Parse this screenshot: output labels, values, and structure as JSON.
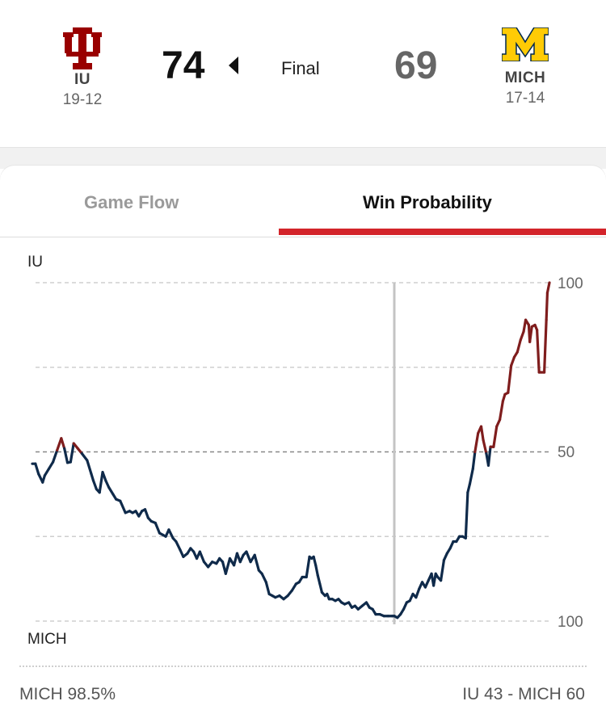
{
  "game": {
    "home": {
      "abbr": "IU",
      "record": "19-12",
      "score": "74",
      "color": "#990000"
    },
    "away": {
      "abbr": "MICH",
      "record": "17-14",
      "score": "69",
      "color": "#FFCB05"
    },
    "status": "Final"
  },
  "tabs": [
    {
      "label": "Game Flow",
      "active": false
    },
    {
      "label": "Win Probability",
      "active": true
    }
  ],
  "footer": {
    "left": "MICH 98.5%",
    "right": "IU 43  - MICH 60"
  },
  "chart_data": {
    "type": "line",
    "top_label": "IU",
    "bottom_label": "MICH",
    "y_ticks": [
      "100",
      "50",
      "100"
    ],
    "halftime_x": 0.7,
    "colors": {
      "iu_favored": "#7f1d1d",
      "mich_favored": "#0f2a4a"
    },
    "series": [
      {
        "points": [
          [
            0.0,
            46.5
          ],
          [
            0.006,
            46.5
          ],
          [
            0.012,
            43.5
          ],
          [
            0.02,
            41.0
          ],
          [
            0.024,
            43.0
          ],
          [
            0.032,
            45.0
          ],
          [
            0.04,
            47.0
          ],
          [
            0.048,
            50.5
          ],
          [
            0.056,
            54.0
          ],
          [
            0.062,
            51.0
          ],
          [
            0.068,
            46.8
          ],
          [
            0.074,
            47.0
          ],
          [
            0.08,
            52.5
          ],
          [
            0.088,
            51.0
          ],
          [
            0.096,
            49.5
          ],
          [
            0.106,
            47.5
          ],
          [
            0.114,
            43.5
          ],
          [
            0.118,
            41.5
          ],
          [
            0.124,
            39.0
          ],
          [
            0.13,
            38.0
          ],
          [
            0.136,
            44.0
          ],
          [
            0.142,
            41.5
          ],
          [
            0.148,
            39.5
          ],
          [
            0.156,
            37.5
          ],
          [
            0.162,
            36.0
          ],
          [
            0.17,
            35.5
          ],
          [
            0.18,
            32.0
          ],
          [
            0.188,
            32.5
          ],
          [
            0.194,
            32.0
          ],
          [
            0.2,
            32.5
          ],
          [
            0.206,
            31.0
          ],
          [
            0.212,
            32.5
          ],
          [
            0.218,
            33.0
          ],
          [
            0.224,
            30.5
          ],
          [
            0.23,
            29.5
          ],
          [
            0.238,
            29.0
          ],
          [
            0.246,
            26.0
          ],
          [
            0.252,
            25.5
          ],
          [
            0.258,
            25.0
          ],
          [
            0.264,
            27.0
          ],
          [
            0.272,
            24.5
          ],
          [
            0.278,
            23.5
          ],
          [
            0.286,
            21.0
          ],
          [
            0.292,
            19.0
          ],
          [
            0.3,
            20.0
          ],
          [
            0.306,
            21.5
          ],
          [
            0.312,
            20.5
          ],
          [
            0.318,
            18.5
          ],
          [
            0.324,
            20.5
          ],
          [
            0.332,
            17.5
          ],
          [
            0.34,
            16.0
          ],
          [
            0.348,
            17.5
          ],
          [
            0.356,
            17.0
          ],
          [
            0.362,
            18.5
          ],
          [
            0.368,
            17.5
          ],
          [
            0.374,
            14.0
          ],
          [
            0.382,
            18.5
          ],
          [
            0.39,
            16.5
          ],
          [
            0.396,
            20.0
          ],
          [
            0.402,
            17.5
          ],
          [
            0.408,
            19.5
          ],
          [
            0.414,
            20.5
          ],
          [
            0.422,
            17.5
          ],
          [
            0.43,
            19.5
          ],
          [
            0.438,
            15.0
          ],
          [
            0.444,
            14.0
          ],
          [
            0.452,
            11.5
          ],
          [
            0.458,
            8.0
          ],
          [
            0.464,
            7.5
          ],
          [
            0.47,
            7.0
          ],
          [
            0.478,
            7.5
          ],
          [
            0.486,
            6.5
          ],
          [
            0.494,
            7.5
          ],
          [
            0.502,
            9.0
          ],
          [
            0.51,
            11.0
          ],
          [
            0.516,
            11.5
          ],
          [
            0.522,
            13.0
          ],
          [
            0.53,
            13.0
          ],
          [
            0.536,
            19.0
          ],
          [
            0.54,
            18.5
          ],
          [
            0.544,
            19.0
          ],
          [
            0.548,
            16.5
          ],
          [
            0.552,
            13.5
          ],
          [
            0.556,
            11.0
          ],
          [
            0.56,
            8.5
          ],
          [
            0.566,
            7.5
          ],
          [
            0.57,
            8.0
          ],
          [
            0.574,
            6.5
          ],
          [
            0.58,
            6.5
          ],
          [
            0.586,
            6.0
          ],
          [
            0.592,
            6.5
          ],
          [
            0.598,
            5.5
          ],
          [
            0.604,
            5.0
          ],
          [
            0.612,
            5.5
          ],
          [
            0.618,
            4.0
          ],
          [
            0.624,
            4.5
          ],
          [
            0.63,
            3.5
          ],
          [
            0.638,
            4.5
          ],
          [
            0.646,
            5.5
          ],
          [
            0.652,
            4.0
          ],
          [
            0.658,
            3.5
          ],
          [
            0.664,
            2.0
          ],
          [
            0.672,
            2.0
          ],
          [
            0.68,
            1.5
          ],
          [
            0.688,
            1.5
          ],
          [
            0.696,
            1.5
          ],
          [
            0.7,
            1.5
          ],
          [
            0.706,
            1.0
          ],
          [
            0.712,
            2.0
          ],
          [
            0.718,
            3.5
          ],
          [
            0.724,
            5.5
          ],
          [
            0.73,
            6.0
          ],
          [
            0.736,
            8.0
          ],
          [
            0.742,
            7.0
          ],
          [
            0.748,
            9.5
          ],
          [
            0.754,
            11.5
          ],
          [
            0.76,
            10.0
          ],
          [
            0.766,
            12.0
          ],
          [
            0.772,
            14.0
          ],
          [
            0.776,
            10.5
          ],
          [
            0.78,
            14.0
          ],
          [
            0.784,
            13.0
          ],
          [
            0.79,
            12.0
          ],
          [
            0.796,
            18.0
          ],
          [
            0.802,
            20.0
          ],
          [
            0.808,
            21.5
          ],
          [
            0.814,
            23.5
          ],
          [
            0.82,
            23.5
          ],
          [
            0.826,
            25.0
          ],
          [
            0.832,
            25.0
          ],
          [
            0.838,
            24.5
          ],
          [
            0.842,
            38.0
          ],
          [
            0.846,
            40.5
          ],
          [
            0.852,
            45.0
          ],
          [
            0.856,
            50.0
          ],
          [
            0.862,
            55.5
          ],
          [
            0.868,
            57.5
          ],
          [
            0.872,
            53.5
          ],
          [
            0.878,
            49.5
          ],
          [
            0.882,
            46.0
          ],
          [
            0.886,
            51.5
          ],
          [
            0.892,
            51.5
          ],
          [
            0.898,
            57.5
          ],
          [
            0.904,
            59.5
          ],
          [
            0.91,
            65.0
          ],
          [
            0.914,
            67.0
          ],
          [
            0.92,
            67.5
          ],
          [
            0.926,
            75.5
          ],
          [
            0.932,
            78.0
          ],
          [
            0.938,
            79.5
          ],
          [
            0.944,
            83.0
          ],
          [
            0.95,
            85.5
          ],
          [
            0.954,
            89.0
          ],
          [
            0.96,
            87.5
          ],
          [
            0.962,
            82.5
          ],
          [
            0.966,
            87.0
          ],
          [
            0.972,
            87.5
          ],
          [
            0.976,
            86.0
          ],
          [
            0.98,
            73.5
          ],
          [
            0.984,
            73.5
          ],
          [
            0.988,
            73.5
          ],
          [
            0.99,
            73.5
          ],
          [
            0.994,
            89.0
          ],
          [
            0.996,
            97.0
          ],
          [
            1.0,
            100.0
          ]
        ]
      }
    ]
  }
}
